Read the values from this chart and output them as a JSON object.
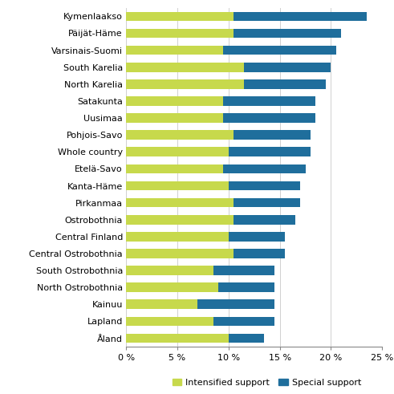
{
  "regions": [
    "Kymenlaakso",
    "Päijät-Häme",
    "Varsinais-Suomi",
    "South Karelia",
    "North Karelia",
    "Satakunta",
    "Uusimaa",
    "Pohjois-Savo",
    "Whole country",
    "Etelä-Savo",
    "Kanta-Häme",
    "Pirkanmaa",
    "Ostrobothnia",
    "Central Finland",
    "Central Ostrobothnia",
    "South Ostrobothnia",
    "North Ostrobothnia",
    "Kainuu",
    "Lapland",
    "Åland"
  ],
  "intensified": [
    10.5,
    10.5,
    9.5,
    11.5,
    11.5,
    9.5,
    9.5,
    10.5,
    10.0,
    9.5,
    10.0,
    10.5,
    10.5,
    10.0,
    10.5,
    8.5,
    9.0,
    7.0,
    8.5,
    10.0
  ],
  "special": [
    13.0,
    10.5,
    11.0,
    8.5,
    8.0,
    9.0,
    9.0,
    7.5,
    8.0,
    8.0,
    7.0,
    6.5,
    6.0,
    5.5,
    5.0,
    6.0,
    5.5,
    7.5,
    6.0,
    3.5
  ],
  "intensified_color": "#c7d94c",
  "special_color": "#1f6e9c",
  "background_color": "#ffffff",
  "xlim": [
    0,
    25
  ],
  "xticks": [
    0,
    5,
    10,
    15,
    20,
    25
  ],
  "xtick_labels": [
    "0 %",
    "5 %",
    "10 %",
    "15 %",
    "20 %",
    "25 %"
  ],
  "legend_labels": [
    "Intensified support",
    "Special support"
  ],
  "bar_height": 0.55,
  "grid_color": "#d0d0d0",
  "tick_fontsize": 8,
  "label_fontsize": 8,
  "legend_fontsize": 8
}
